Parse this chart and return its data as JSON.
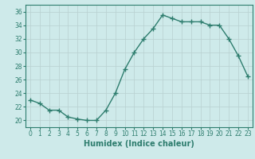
{
  "x": [
    0,
    1,
    2,
    3,
    4,
    5,
    6,
    7,
    8,
    9,
    10,
    11,
    12,
    13,
    14,
    15,
    16,
    17,
    18,
    19,
    20,
    21,
    22,
    23
  ],
  "y": [
    23.0,
    22.5,
    21.5,
    21.5,
    20.5,
    20.2,
    20.0,
    20.0,
    21.5,
    24.0,
    27.5,
    30.0,
    32.0,
    33.5,
    35.5,
    35.0,
    34.5,
    34.5,
    34.5,
    34.0,
    34.0,
    32.0,
    29.5,
    26.5
  ],
  "line_color": "#2e7d6e",
  "marker": "+",
  "marker_size": 4,
  "marker_linewidth": 1.0,
  "line_width": 1.0,
  "background_color": "#ceeaea",
  "grid_color": "#b8d0d0",
  "xlabel": "Humidex (Indice chaleur)",
  "xlim": [
    -0.5,
    23.5
  ],
  "ylim": [
    19,
    37
  ],
  "yticks": [
    20,
    22,
    24,
    26,
    28,
    30,
    32,
    34,
    36
  ],
  "xticks": [
    0,
    1,
    2,
    3,
    4,
    5,
    6,
    7,
    8,
    9,
    10,
    11,
    12,
    13,
    14,
    15,
    16,
    17,
    18,
    19,
    20,
    21,
    22,
    23
  ],
  "tick_fontsize": 5.5,
  "label_fontsize": 7
}
